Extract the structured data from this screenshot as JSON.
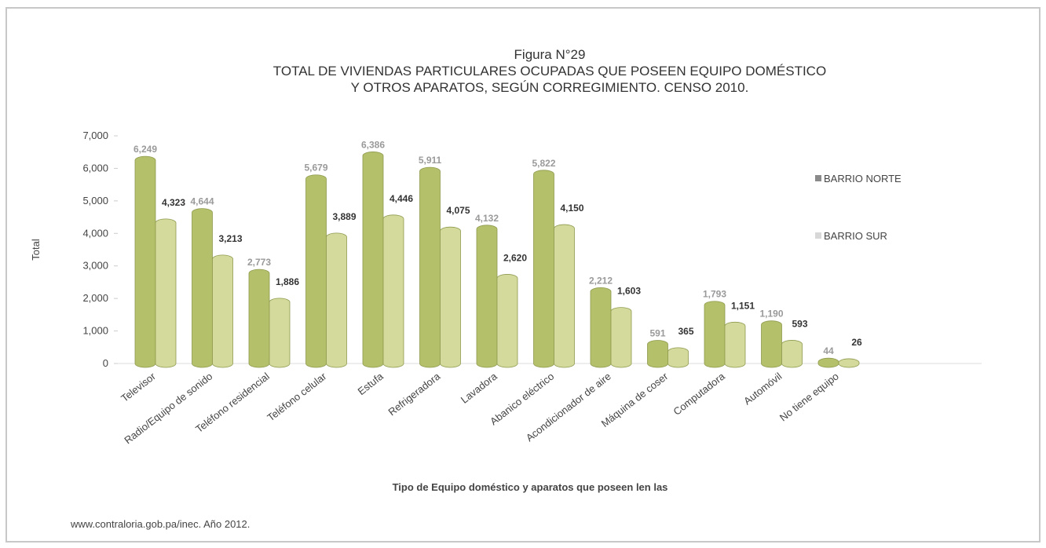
{
  "chart_data": {
    "type": "bar",
    "figure": "Figura N°29",
    "title": "TOTAL DE VIVIENDAS PARTICULARES OCUPADAS QUE POSEEN EQUIPO DOMÉSTICO",
    "subtitle": "Y OTROS APARATOS, SEGÚN CORREGIMIENTO.  CENSO 2010.",
    "ylabel": "Total",
    "xlabel": "Tipo de Equipo doméstico y aparatos que poseen len las",
    "source": "www.contraloria.gob.pa/inec. Año 2012.",
    "categories": [
      "Televisor",
      "Radio/Equipo de sonido",
      "Teléfono residencial",
      "Teléfono celular",
      "Estufa",
      "Refrigeradora",
      "Lavadora",
      "Abanico eléctrico",
      "Acondicionador de aire",
      "Máquina de coser",
      "Computadora",
      "Automóvil",
      "No tiene equipo"
    ],
    "series": [
      {
        "name": "BARRIO NORTE",
        "color": "#b4c06a",
        "legend_color": "#8a8a8a",
        "values": [
          6249,
          4644,
          2773,
          5679,
          6386,
          5911,
          4132,
          5822,
          2212,
          591,
          1793,
          1190,
          44
        ],
        "value_labels": [
          "6,249",
          "4,644",
          "2,773",
          "5,679",
          "6,386",
          "5,911",
          "4,132",
          "5,822",
          "2,212",
          "591",
          "1,793",
          "1,190",
          "44"
        ]
      },
      {
        "name": "BARRIO SUR",
        "color": "#d3da9c",
        "legend_color": "#d8d8d8",
        "values": [
          4323,
          3213,
          1886,
          3889,
          4446,
          4075,
          2620,
          4150,
          1603,
          365,
          1151,
          593,
          26
        ],
        "value_labels": [
          "4,323",
          "3,213",
          "1,886",
          "3,889",
          "4,446",
          "4,075",
          "2,620",
          "4,150",
          "1,603",
          "365",
          "1,151",
          "593",
          "26"
        ]
      }
    ],
    "ylim": [
      0,
      7000
    ],
    "yticks": [
      {
        "value": 0,
        "label": "0"
      },
      {
        "value": 1000,
        "label": "1,000"
      },
      {
        "value": 2000,
        "label": "2,000"
      },
      {
        "value": 3000,
        "label": "3,000"
      },
      {
        "value": 4000,
        "label": "4,000"
      },
      {
        "value": 5000,
        "label": "5,000"
      },
      {
        "value": 6000,
        "label": "6,000"
      },
      {
        "value": 7000,
        "label": "7,000"
      }
    ]
  }
}
